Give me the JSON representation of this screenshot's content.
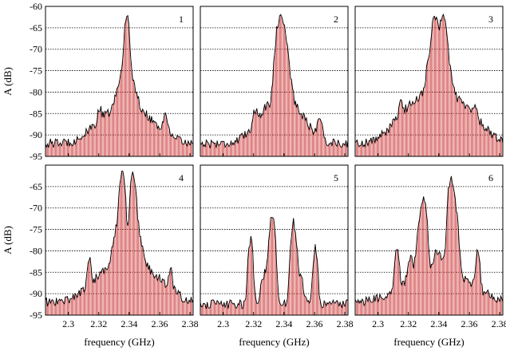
{
  "chart_data": {
    "type": "line",
    "layout": "2x3 panel grid with shared axes",
    "xlabel": "frequency (GHz)",
    "ylabel": "A (dB)",
    "xlim": [
      2.285,
      2.382
    ],
    "ylim": [
      -95,
      -60
    ],
    "xticks": [
      2.3,
      2.32,
      2.34,
      2.36,
      2.38
    ],
    "xtick_labels": [
      "2.3",
      "2.32",
      "2.34",
      "2.36",
      "2.38"
    ],
    "yticks_top_row": [
      -60,
      -65,
      -70,
      -75,
      -80,
      -85,
      -90,
      -95
    ],
    "ytick_labels_top_row": [
      "-60",
      "-65",
      "-70",
      "-75",
      "-80",
      "-85",
      "-90",
      "-95"
    ],
    "yticks_bottom_row": [
      -65,
      -70,
      -75,
      -80,
      -85,
      -90,
      -95
    ],
    "ytick_labels_bottom_row": [
      "-65",
      "-70",
      "-75",
      "-80",
      "-85",
      "-90",
      "-95"
    ],
    "gridlines": "horizontal dashed at every 5 dB",
    "series_style": {
      "line_color": "#000000",
      "fill_color": "#cc3333"
    },
    "panels": [
      {
        "label": "1",
        "peaks": [
          {
            "x": 2.3385,
            "y": -62,
            "w": 0.0016
          },
          {
            "x": 2.3365,
            "y": -76,
            "w": 0.004
          },
          {
            "x": 2.3415,
            "y": -80,
            "w": 0.004
          },
          {
            "x": 2.3205,
            "y": -87,
            "w": 0.0015
          },
          {
            "x": 2.364,
            "y": -86.5,
            "w": 0.0015
          }
        ],
        "base": -92,
        "broad": {
          "x": 2.338,
          "y": -84,
          "w": 0.018
        }
      },
      {
        "label": "2",
        "peaks": [
          {
            "x": 2.3365,
            "y": -64.5,
            "w": 0.0022
          },
          {
            "x": 2.339,
            "y": -64,
            "w": 0.0022
          },
          {
            "x": 2.341,
            "y": -72,
            "w": 0.003
          },
          {
            "x": 2.3212,
            "y": -87,
            "w": 0.0015
          },
          {
            "x": 2.3635,
            "y": -86.5,
            "w": 0.0015
          }
        ],
        "base": -92,
        "broad": {
          "x": 2.338,
          "y": -82,
          "w": 0.014
        }
      },
      {
        "label": "3",
        "peaks": [
          {
            "x": 2.3375,
            "y": -63,
            "w": 0.0022
          },
          {
            "x": 2.3425,
            "y": -62,
            "w": 0.0022
          },
          {
            "x": 2.335,
            "y": -72,
            "w": 0.003
          },
          {
            "x": 2.345,
            "y": -73,
            "w": 0.003
          },
          {
            "x": 2.315,
            "y": -86,
            "w": 0.0015
          },
          {
            "x": 2.364,
            "y": -86.5,
            "w": 0.0015
          }
        ],
        "base": -92,
        "broad": {
          "x": 2.339,
          "y": -80,
          "w": 0.02
        }
      },
      {
        "label": "4",
        "peaks": [
          {
            "x": 2.3355,
            "y": -62,
            "w": 0.0018
          },
          {
            "x": 2.3425,
            "y": -62,
            "w": 0.0018
          },
          {
            "x": 2.3325,
            "y": -75,
            "w": 0.003
          },
          {
            "x": 2.3455,
            "y": -76,
            "w": 0.003
          },
          {
            "x": 2.3138,
            "y": -83,
            "w": 0.0013
          },
          {
            "x": 2.3672,
            "y": -85.5,
            "w": 0.0013
          }
        ],
        "base": -92,
        "broad": {
          "x": 2.339,
          "y": -83,
          "w": 0.02
        }
      },
      {
        "label": "5",
        "peaks": [
          {
            "x": 2.3322,
            "y": -71.5,
            "w": 0.0018
          },
          {
            "x": 2.3462,
            "y": -73.5,
            "w": 0.0018
          },
          {
            "x": 2.318,
            "y": -77.5,
            "w": 0.0015
          },
          {
            "x": 2.3605,
            "y": -79.5,
            "w": 0.0015
          },
          {
            "x": 2.328,
            "y": -86,
            "w": 0.003
          },
          {
            "x": 2.35,
            "y": -87,
            "w": 0.003
          }
        ],
        "base": -92.5,
        "broad": null
      },
      {
        "label": "6",
        "peaks": [
          {
            "x": 2.3303,
            "y": -68,
            "w": 0.0018
          },
          {
            "x": 2.3478,
            "y": -63,
            "w": 0.0018
          },
          {
            "x": 2.3275,
            "y": -74,
            "w": 0.002
          },
          {
            "x": 2.3505,
            "y": -70,
            "w": 0.002
          },
          {
            "x": 2.3125,
            "y": -80,
            "w": 0.0015
          },
          {
            "x": 2.3655,
            "y": -81,
            "w": 0.0015
          },
          {
            "x": 2.3215,
            "y": -84,
            "w": 0.002
          },
          {
            "x": 2.3395,
            "y": -82,
            "w": 0.003
          }
        ],
        "base": -92,
        "broad": {
          "x": 2.339,
          "y": -85,
          "w": 0.022
        }
      }
    ]
  }
}
